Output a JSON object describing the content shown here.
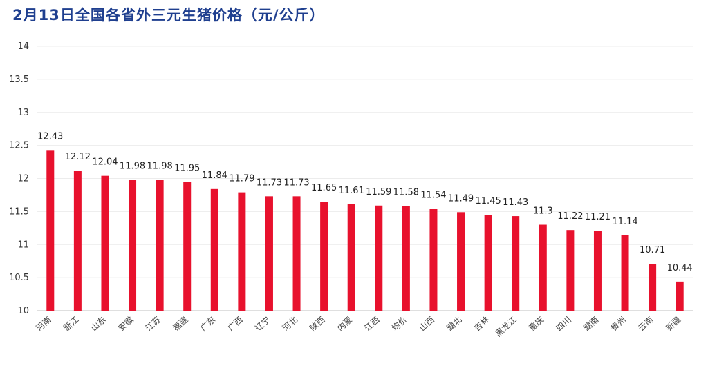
{
  "chart_data": {
    "type": "bar",
    "title": "2月13日全国各省外三元生猪价格（元/公斤）",
    "xlabel": "",
    "ylabel": "",
    "categories": [
      "河南",
      "浙江",
      "山东",
      "安徽",
      "江苏",
      "福建",
      "广东",
      "广西",
      "辽宁",
      "河北",
      "陕西",
      "内蒙",
      "江西",
      "均价",
      "山西",
      "湖北",
      "吉林",
      "黑龙江",
      "重庆",
      "四川",
      "湖南",
      "贵州",
      "云南",
      "新疆"
    ],
    "values": [
      12.43,
      12.12,
      12.04,
      11.98,
      11.98,
      11.95,
      11.84,
      11.79,
      11.73,
      11.73,
      11.65,
      11.61,
      11.59,
      11.58,
      11.54,
      11.49,
      11.45,
      11.43,
      11.3,
      11.22,
      11.21,
      11.14,
      10.71,
      10.44
    ],
    "ylim": [
      10,
      14
    ],
    "yticks": [
      10,
      10.5,
      11,
      11.5,
      12,
      12.5,
      13,
      13.5,
      14
    ],
    "ytick_labels": [
      "10",
      "10.5",
      "11",
      "11.5",
      "12",
      "12.5",
      "13",
      "13.5",
      "14"
    ],
    "bar_color": "#e8112d",
    "grid": true
  }
}
